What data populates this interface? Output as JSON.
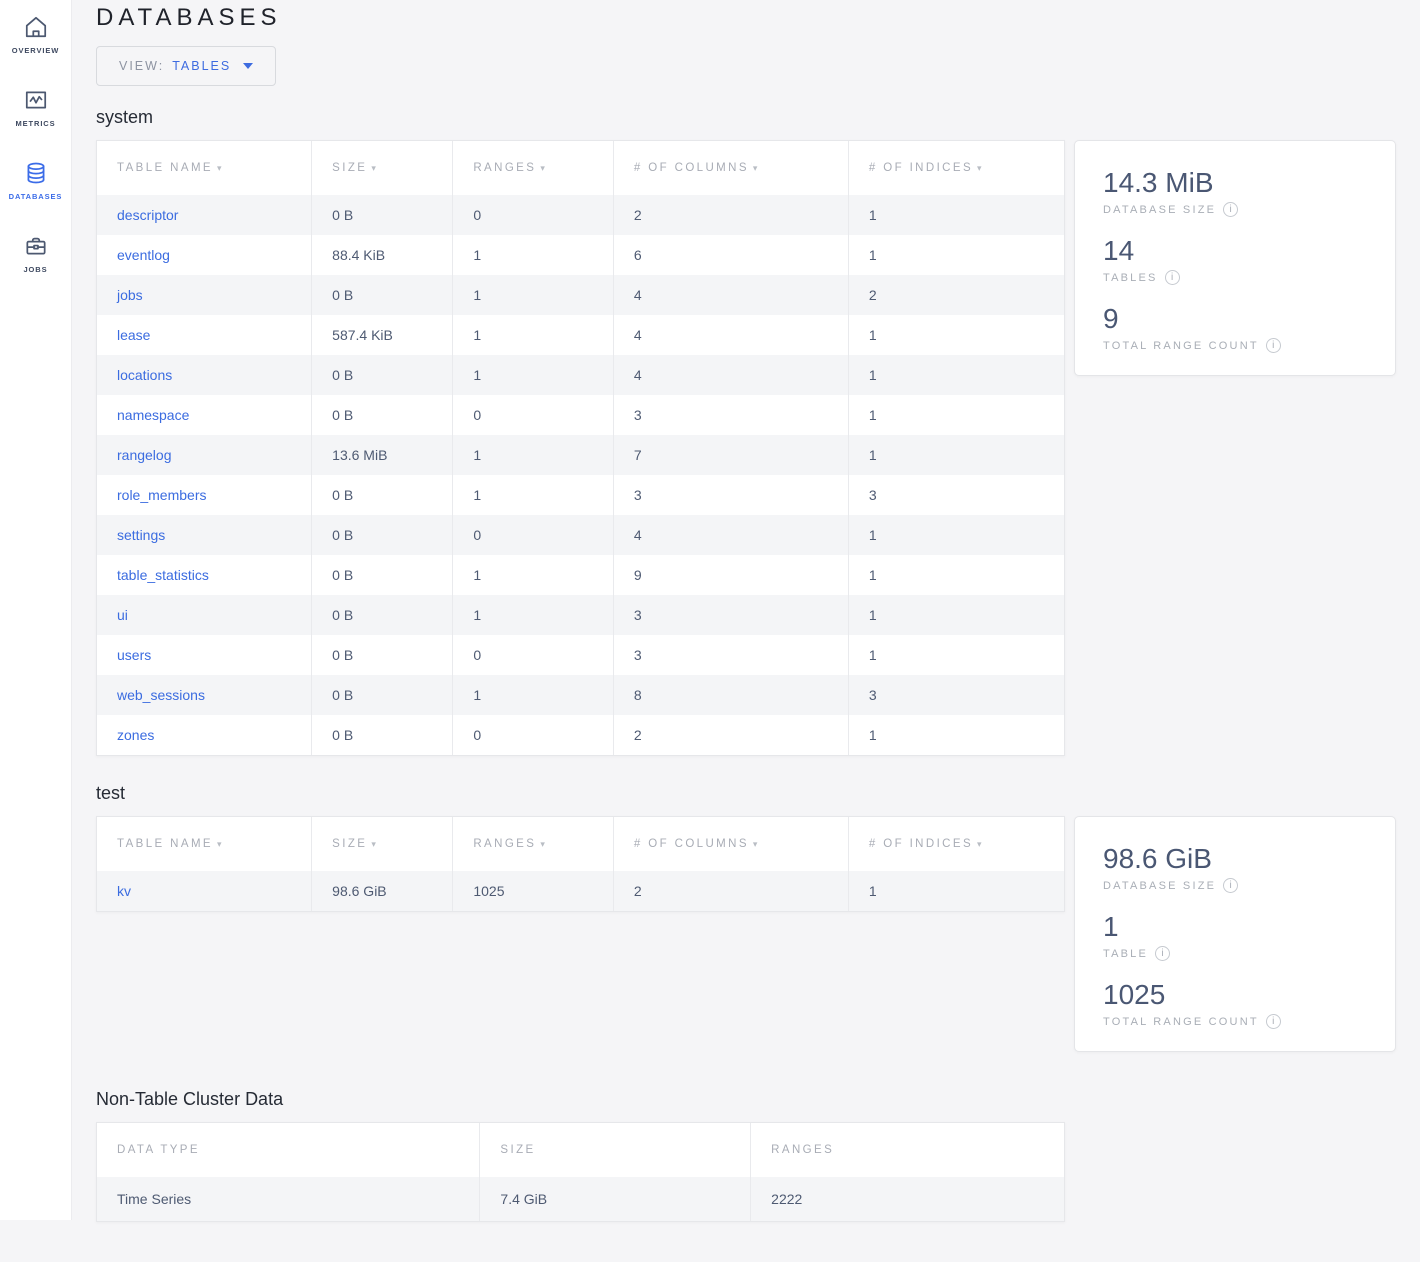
{
  "colors": {
    "accent": "#3b6ce8",
    "link": "#3b6ce0",
    "stat_value": "#4a5773"
  },
  "icons": {
    "sort_caret": "▾",
    "info_glyph": "i"
  },
  "sidebar": {
    "items": [
      {
        "label": "OVERVIEW",
        "icon": "home-icon",
        "active": false
      },
      {
        "label": "METRICS",
        "icon": "metrics-icon",
        "active": false
      },
      {
        "label": "DATABASES",
        "icon": "database-icon",
        "active": true
      },
      {
        "label": "JOBS",
        "icon": "briefcase-icon",
        "active": false
      }
    ]
  },
  "header": {
    "title": "DATABASES"
  },
  "view_selector": {
    "label": "VIEW:",
    "value": "TABLES"
  },
  "databases": [
    {
      "name": "system",
      "columns": [
        "TABLE NAME",
        "SIZE",
        "RANGES",
        "# OF COLUMNS",
        "# OF INDICES"
      ],
      "rows": [
        [
          "descriptor",
          "0 B",
          "0",
          "2",
          "1"
        ],
        [
          "eventlog",
          "88.4 KiB",
          "1",
          "6",
          "1"
        ],
        [
          "jobs",
          "0 B",
          "1",
          "4",
          "2"
        ],
        [
          "lease",
          "587.4 KiB",
          "1",
          "4",
          "1"
        ],
        [
          "locations",
          "0 B",
          "1",
          "4",
          "1"
        ],
        [
          "namespace",
          "0 B",
          "0",
          "3",
          "1"
        ],
        [
          "rangelog",
          "13.6 MiB",
          "1",
          "7",
          "1"
        ],
        [
          "role_members",
          "0 B",
          "1",
          "3",
          "3"
        ],
        [
          "settings",
          "0 B",
          "0",
          "4",
          "1"
        ],
        [
          "table_statistics",
          "0 B",
          "1",
          "9",
          "1"
        ],
        [
          "ui",
          "0 B",
          "1",
          "3",
          "1"
        ],
        [
          "users",
          "0 B",
          "0",
          "3",
          "1"
        ],
        [
          "web_sessions",
          "0 B",
          "1",
          "8",
          "3"
        ],
        [
          "zones",
          "0 B",
          "0",
          "2",
          "1"
        ]
      ],
      "summary": {
        "size_value": "14.3 MiB",
        "size_label": "DATABASE SIZE",
        "tables_value": "14",
        "tables_label": "TABLES",
        "ranges_value": "9",
        "ranges_label": "TOTAL RANGE COUNT"
      }
    },
    {
      "name": "test",
      "columns": [
        "TABLE NAME",
        "SIZE",
        "RANGES",
        "# OF COLUMNS",
        "# OF INDICES"
      ],
      "rows": [
        [
          "kv",
          "98.6 GiB",
          "1025",
          "2",
          "1"
        ]
      ],
      "summary": {
        "size_value": "98.6 GiB",
        "size_label": "DATABASE SIZE",
        "tables_value": "1",
        "tables_label": "TABLE",
        "ranges_value": "1025",
        "ranges_label": "TOTAL RANGE COUNT"
      }
    }
  ],
  "non_table": {
    "title": "Non-Table Cluster Data",
    "columns": [
      "DATA TYPE",
      "SIZE",
      "RANGES"
    ],
    "rows": [
      [
        "Time Series",
        "7.4 GiB",
        "2222"
      ]
    ]
  }
}
